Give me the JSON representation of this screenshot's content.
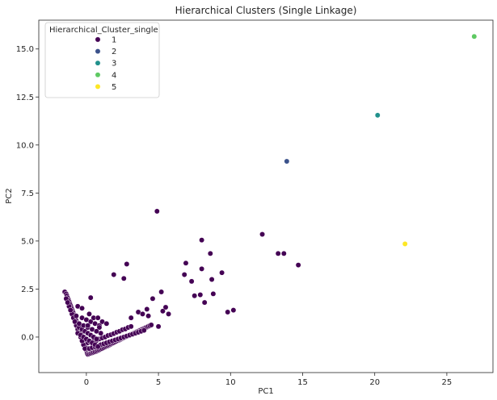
{
  "chart_data": {
    "type": "scatter",
    "title": "Hierarchical Clusters (Single Linkage)",
    "xlabel": "PC1",
    "ylabel": "PC2",
    "xlim": [
      -3.3,
      28.2
    ],
    "ylim": [
      -1.85,
      16.5
    ],
    "xticks": [
      0,
      5,
      10,
      15,
      20,
      25
    ],
    "yticks": [
      0.0,
      2.5,
      5.0,
      7.5,
      10.0,
      12.5,
      15.0
    ],
    "ytick_labels": [
      "0.0",
      "2.5",
      "5.0",
      "7.5",
      "10.0",
      "12.5",
      "15.0"
    ],
    "grid": false,
    "legend": {
      "title": "Hierarchical_Cluster_single",
      "position": "top-left"
    },
    "series": [
      {
        "name": "1",
        "color": "#440154",
        "x": [
          -1.5,
          -1.4,
          -1.35,
          -1.3,
          -1.25,
          -1.2,
          -1.15,
          -1.1,
          -1.05,
          -1.0,
          -0.95,
          -0.9,
          -0.85,
          -0.8,
          -0.75,
          -0.7,
          -0.65,
          -0.6,
          -0.55,
          -0.5,
          -0.45,
          -0.4,
          -0.35,
          -0.3,
          -0.25,
          -0.2,
          -0.15,
          -0.1,
          -0.05,
          0.0,
          -1.4,
          -1.2,
          -1.0,
          -0.8,
          -0.6,
          -0.4,
          -0.2,
          -1.3,
          -1.1,
          -0.9,
          -0.7,
          -0.5,
          -0.3,
          -0.1,
          0.05,
          0.1,
          0.2,
          0.3,
          0.4,
          0.5,
          0.6,
          0.7,
          0.8,
          0.9,
          1.0,
          1.1,
          1.2,
          1.3,
          1.4,
          1.5,
          1.6,
          1.7,
          1.8,
          1.9,
          2.0,
          2.1,
          2.2,
          2.3,
          2.4,
          2.5,
          2.6,
          2.7,
          2.8,
          2.9,
          3.0,
          3.1,
          3.2,
          3.3,
          3.4,
          3.5,
          3.6,
          3.7,
          3.8,
          3.9,
          4.0,
          4.1,
          4.2,
          4.3,
          4.4,
          4.5,
          0.2,
          0.4,
          0.6,
          0.8,
          1.0,
          1.2,
          1.4,
          1.6,
          1.8,
          2.0,
          2.2,
          2.4,
          2.6,
          2.8,
          3.0,
          3.2,
          3.4,
          3.6,
          3.8,
          4.0,
          0.1,
          0.3,
          0.5,
          0.7,
          0.9,
          1.1,
          1.3,
          1.5,
          1.7,
          1.9,
          2.1,
          2.3,
          2.5,
          2.7,
          2.9,
          3.1,
          -0.6,
          -0.4,
          -0.2,
          0.0,
          0.2,
          0.4,
          0.6,
          0.8,
          -0.5,
          -0.3,
          -0.1,
          0.1,
          0.3,
          0.5,
          0.7,
          -0.8,
          -0.5,
          -0.2,
          0.1,
          0.4,
          0.7,
          1.0,
          -0.7,
          -0.3,
          0.0,
          0.3,
          0.6,
          0.9,
          -0.6,
          -0.3,
          0.2,
          0.5,
          0.8,
          1.1,
          1.4,
          0.3,
          0.9,
          0.1,
          0.7,
          4.9,
          2.8,
          1.9,
          2.6,
          3.1,
          3.6,
          4.6,
          5.2,
          5.3,
          5.7,
          5.5,
          5.0,
          4.2,
          3.9,
          4.3,
          6.8,
          7.3,
          7.5,
          7.9,
          8.0,
          8.2,
          8.7,
          8.8,
          9.4,
          9.8,
          10.2,
          6.9,
          8.0,
          8.6,
          12.2,
          13.3,
          13.7,
          14.7
        ],
        "y": [
          2.35,
          2.25,
          2.15,
          2.05,
          1.95,
          1.85,
          1.75,
          1.65,
          1.55,
          1.45,
          1.35,
          1.25,
          1.15,
          1.05,
          0.95,
          0.85,
          0.75,
          0.65,
          0.55,
          0.45,
          0.35,
          0.25,
          0.15,
          0.05,
          -0.05,
          -0.15,
          -0.25,
          -0.4,
          -0.55,
          -0.7,
          2.0,
          1.6,
          1.2,
          0.8,
          0.4,
          0.0,
          -0.4,
          1.8,
          1.4,
          1.0,
          0.6,
          0.2,
          -0.2,
          -0.6,
          -0.85,
          -0.9,
          -0.88,
          -0.85,
          -0.82,
          -0.8,
          -0.77,
          -0.74,
          -0.7,
          -0.67,
          -0.63,
          -0.6,
          -0.56,
          -0.52,
          -0.48,
          -0.45,
          -0.41,
          -0.37,
          -0.33,
          -0.3,
          -0.26,
          -0.22,
          -0.18,
          -0.15,
          -0.11,
          -0.07,
          -0.04,
          0.0,
          0.03,
          0.07,
          0.1,
          0.14,
          0.17,
          0.21,
          0.24,
          0.28,
          0.31,
          0.35,
          0.38,
          0.42,
          0.45,
          0.49,
          0.52,
          0.56,
          0.59,
          0.63,
          -0.6,
          -0.55,
          -0.5,
          -0.45,
          -0.4,
          -0.35,
          -0.3,
          -0.25,
          -0.2,
          -0.15,
          -0.1,
          -0.05,
          0.0,
          0.05,
          0.1,
          0.15,
          0.2,
          0.25,
          0.3,
          0.35,
          -0.3,
          -0.28,
          -0.22,
          -0.18,
          -0.1,
          -0.05,
          0.0,
          0.08,
          0.12,
          0.18,
          0.25,
          0.3,
          0.38,
          0.42,
          0.5,
          0.55,
          0.2,
          0.1,
          0.0,
          -0.1,
          -0.2,
          -0.3,
          -0.4,
          -0.5,
          0.5,
          0.4,
          0.3,
          0.2,
          0.1,
          0.0,
          -0.1,
          0.8,
          0.7,
          0.6,
          0.5,
          0.4,
          0.3,
          0.2,
          1.1,
          1.0,
          0.9,
          0.8,
          0.7,
          0.6,
          1.6,
          1.5,
          1.2,
          1.0,
          1.0,
          0.8,
          0.7,
          2.05,
          0.5,
          0.6,
          0.3,
          6.55,
          3.8,
          3.25,
          3.05,
          1.0,
          1.3,
          2.0,
          2.35,
          1.35,
          1.2,
          1.55,
          0.55,
          1.45,
          1.2,
          1.1,
          3.25,
          2.9,
          2.15,
          2.2,
          3.55,
          1.8,
          3.0,
          2.25,
          3.35,
          1.3,
          1.4,
          3.85,
          5.05,
          4.35,
          5.35,
          4.35,
          4.35,
          3.75
        ]
      },
      {
        "name": "2",
        "color": "#3b528b",
        "x": [
          13.9
        ],
        "y": [
          9.15
        ]
      },
      {
        "name": "3",
        "color": "#21918c",
        "x": [
          20.2
        ],
        "y": [
          11.55
        ]
      },
      {
        "name": "4",
        "color": "#5ec962",
        "x": [
          26.9
        ],
        "y": [
          15.65
        ]
      },
      {
        "name": "5",
        "color": "#fde725",
        "x": [
          22.1
        ],
        "y": [
          4.85
        ]
      }
    ]
  }
}
